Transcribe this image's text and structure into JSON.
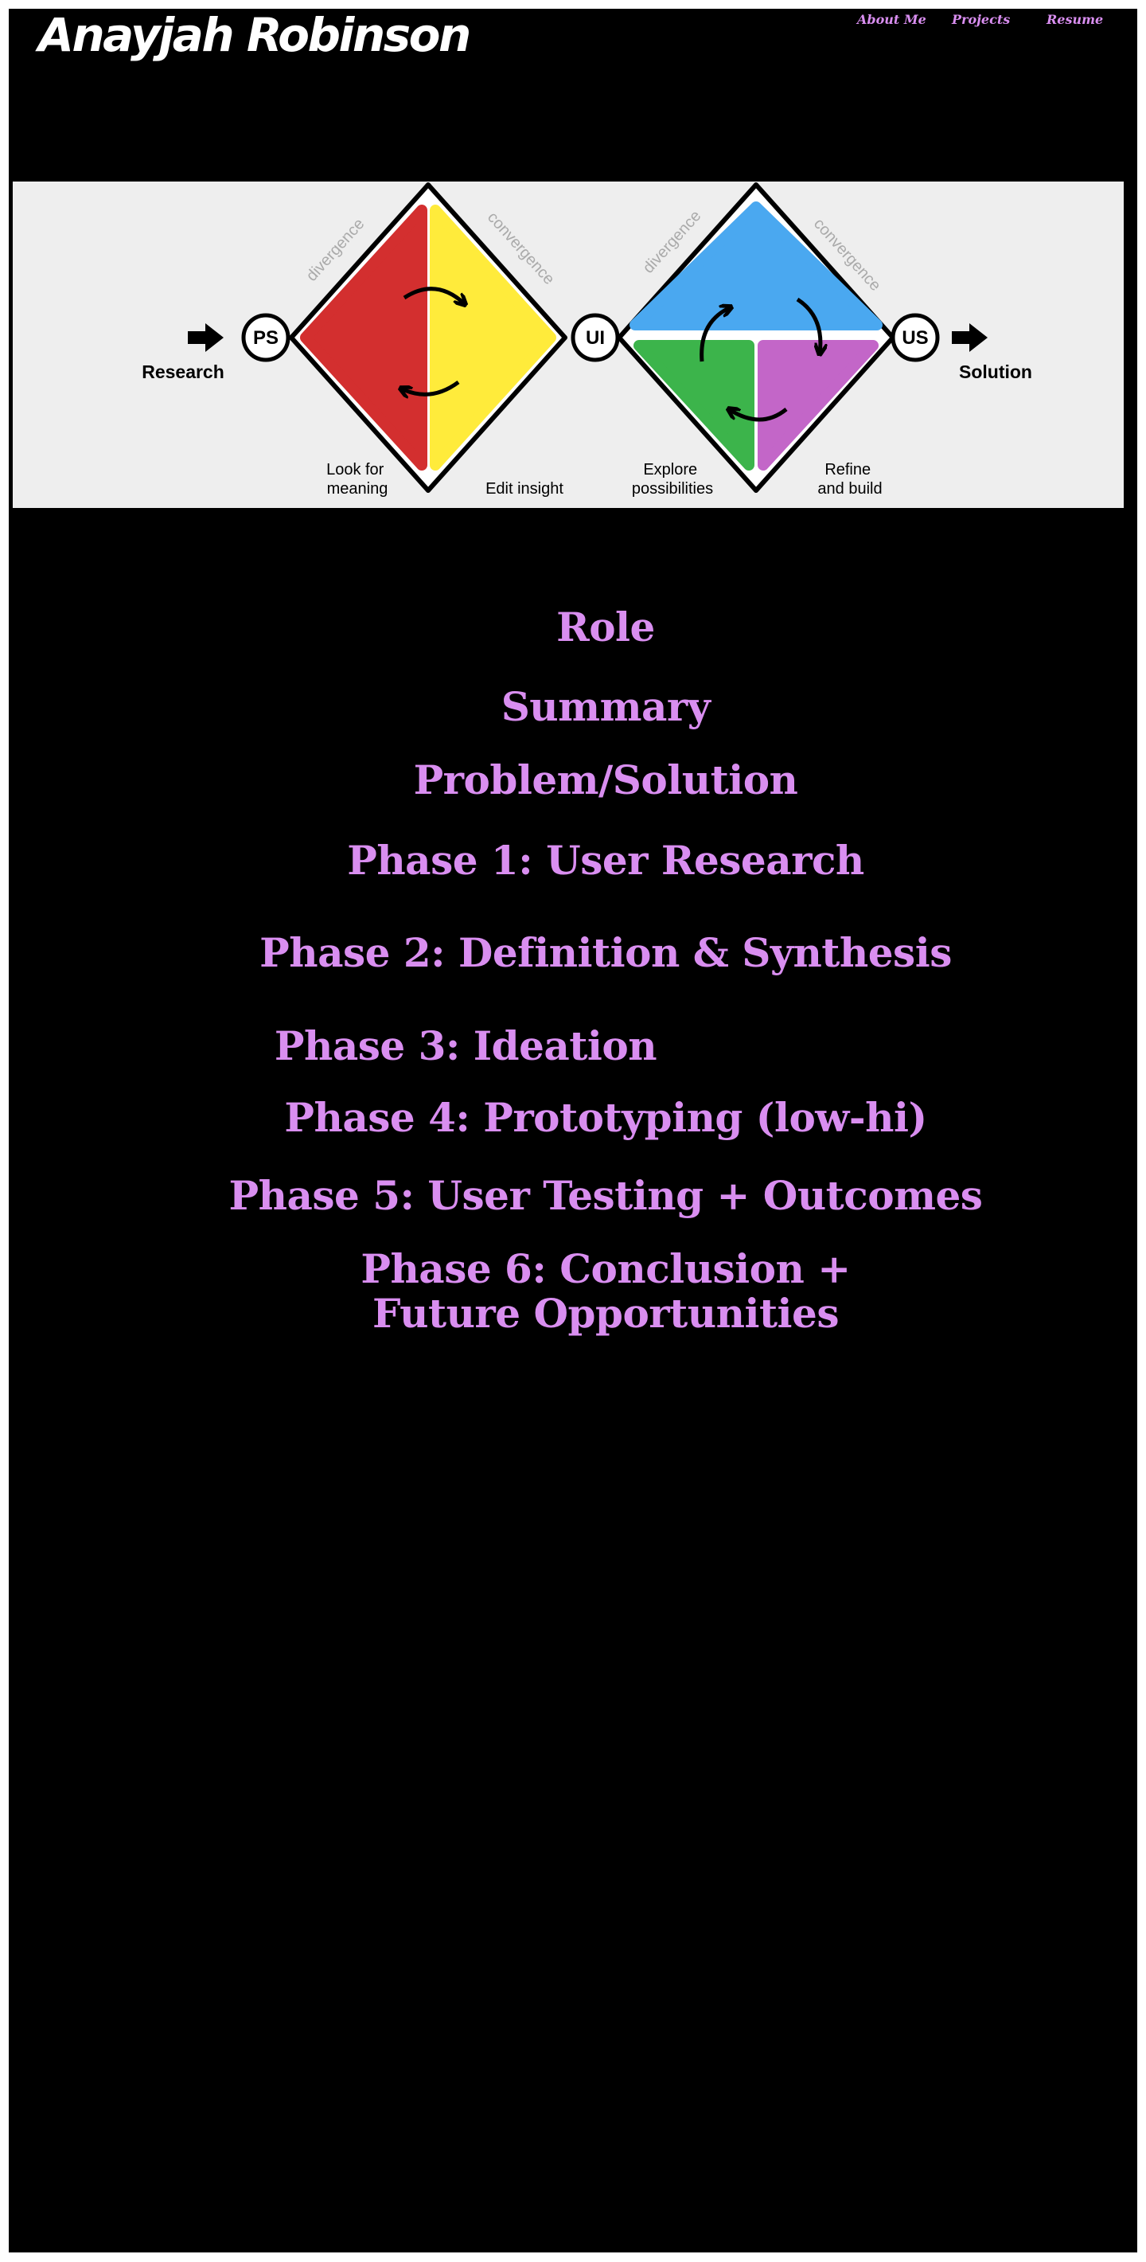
{
  "header": {
    "brand": "Anayjah Robinson",
    "nav": [
      "About Me",
      "Projects",
      "Resume"
    ]
  },
  "diagram": {
    "start_label": "Research",
    "end_label": "Solution",
    "nodes": [
      "PS",
      "UI",
      "US"
    ],
    "arc_labels": [
      "divergence",
      "convergence",
      "divergence",
      "convergence"
    ],
    "steps": [
      [
        "Look for",
        "meaning"
      ],
      [
        "Edit insight"
      ],
      [
        "Explore",
        "possibilities"
      ],
      [
        "Refine",
        "and build"
      ]
    ],
    "colors": {
      "red": "#d32f2f",
      "yellow": "#ffeb3b",
      "blue": "#4aa8f0",
      "green": "#3cb44b",
      "purple": "#c366c8",
      "panel": "#eeeeee",
      "arc_text": "#aaaaaa"
    }
  },
  "sections": [
    "Role",
    "Summary",
    "Problem/Solution",
    "Phase 1: User Research",
    "Phase 2: Definition & Synthesis",
    "Phase 3: Ideation",
    "Phase 4: Prototyping (low-hi)",
    "Phase 5: User Testing + Outcomes",
    "Phase 6: Conclusion + Future Opportunities"
  ],
  "colors": {
    "background": "#000000",
    "accent": "#d98ef0",
    "brand": "#ffffff"
  }
}
